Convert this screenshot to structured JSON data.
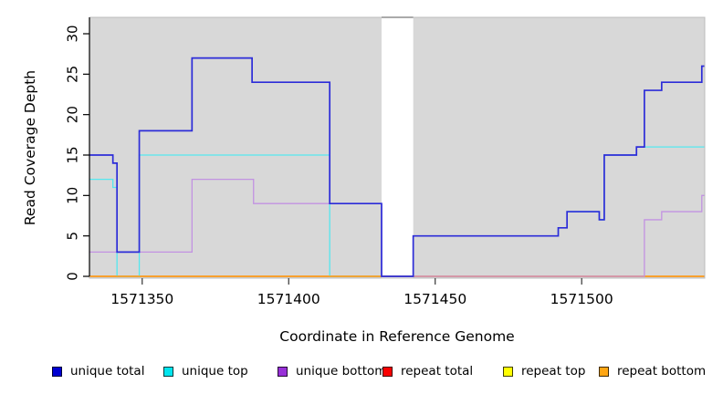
{
  "chart_data": {
    "type": "line",
    "subtype": "step-coverage",
    "title": "",
    "xlabel": "Coordinate in Reference Genome",
    "ylabel": "Read Coverage Depth",
    "xlim": [
      1571332,
      1571542
    ],
    "ylim": [
      0,
      32
    ],
    "x_ticks": [
      1571350,
      1571400,
      1571450,
      1571500
    ],
    "y_ticks": [
      0,
      5,
      10,
      15,
      20,
      25,
      30
    ],
    "grid": false,
    "panel_background": "#d8d8d8",
    "panel_border": "#bcbcbc",
    "repeat_region": {
      "start": 1571431.7,
      "end": 1571442.5,
      "fill": "#ffffff",
      "clipped_top_line_color": "#999999"
    },
    "series": [
      {
        "name": "repeat top",
        "line_color": "#ffff00",
        "width": 1.3,
        "steps": [
          [
            1571332,
            0
          ]
        ]
      },
      {
        "name": "repeat total",
        "line_color": "#e00000",
        "width": 1.3,
        "steps": [
          [
            1571332,
            0
          ]
        ]
      },
      {
        "name": "unique top",
        "line_color": "#55e7ef",
        "width": 1.3,
        "steps": [
          [
            1571332,
            12
          ],
          [
            1571340,
            11
          ],
          [
            1571341.4,
            0
          ],
          [
            1571349,
            15
          ],
          [
            1571414,
            0
          ],
          [
            1571442.5,
            5
          ],
          [
            1571492,
            6
          ],
          [
            1571495,
            8
          ],
          [
            1571506,
            7
          ],
          [
            1571507.7,
            15
          ],
          [
            1571518.7,
            16
          ]
        ]
      },
      {
        "name": "repeat bottom",
        "line_color": "#ff9e16",
        "width": 1.5,
        "steps": [
          [
            1571332,
            0
          ]
        ]
      },
      {
        "name": "unique bottom",
        "line_color": "#c292e2",
        "width": 1.3,
        "steps": [
          [
            1571332,
            3
          ],
          [
            1571367,
            12
          ],
          [
            1571388,
            9
          ],
          [
            1571431.7,
            0
          ],
          [
            1571521.4,
            7
          ],
          [
            1571527.3,
            8
          ],
          [
            1571541,
            10
          ]
        ]
      },
      {
        "name": "unique total",
        "line_color": "#2c2cd8",
        "width": 1.7,
        "steps": [
          [
            1571332,
            15
          ],
          [
            1571340,
            14
          ],
          [
            1571341.4,
            3
          ],
          [
            1571349,
            18
          ],
          [
            1571367,
            27
          ],
          [
            1571387.5,
            24
          ],
          [
            1571414,
            9
          ],
          [
            1571431.7,
            0
          ],
          [
            1571442.5,
            5
          ],
          [
            1571492,
            6
          ],
          [
            1571495,
            8
          ],
          [
            1571506,
            7
          ],
          [
            1571507.7,
            15
          ],
          [
            1571518.7,
            16
          ],
          [
            1571521.4,
            23
          ],
          [
            1571527.3,
            24
          ],
          [
            1571541,
            26
          ]
        ]
      }
    ],
    "legend_position": "bottom"
  },
  "axes": {
    "x_title": "Coordinate in Reference Genome",
    "y_title": "Read Coverage Depth"
  },
  "legend": {
    "items": [
      {
        "label": "unique total",
        "color": "#0000d2"
      },
      {
        "label": "unique top",
        "color": "#00e5ee"
      },
      {
        "label": "unique bottom",
        "color": "#9830d8"
      },
      {
        "label": "repeat total",
        "color": "#fa0000"
      },
      {
        "label": "repeat top",
        "color": "#ffff00"
      },
      {
        "label": "repeat bottom",
        "color": "#ffa613"
      }
    ]
  }
}
